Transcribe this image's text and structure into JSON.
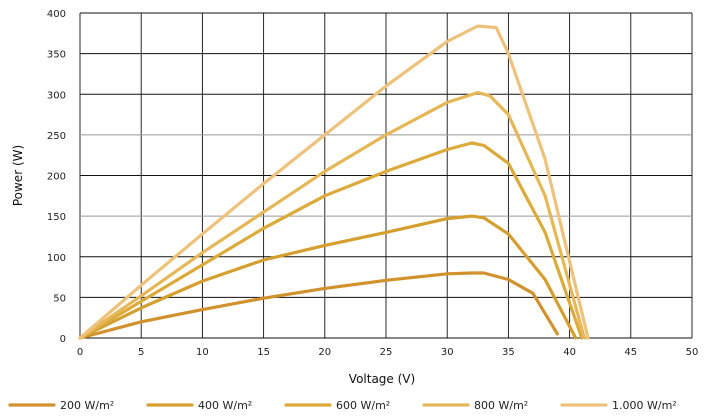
{
  "chart_data": {
    "type": "line",
    "title": "",
    "xlabel": "Voltage (V)",
    "ylabel": "Power (W)",
    "xlim": [
      0,
      50
    ],
    "ylim": [
      0,
      400
    ],
    "x_ticks": [
      0,
      5,
      10,
      15,
      20,
      25,
      30,
      35,
      40,
      45,
      50
    ],
    "y_ticks": [
      0,
      50,
      100,
      150,
      200,
      250,
      300,
      350,
      400
    ],
    "grid": true,
    "legend_position": "bottom",
    "series": [
      {
        "name": "200 W/m²",
        "color": "#d1922e",
        "points": [
          [
            0,
            0
          ],
          [
            5,
            20
          ],
          [
            10,
            35
          ],
          [
            15,
            49
          ],
          [
            20,
            61
          ],
          [
            25,
            71
          ],
          [
            30,
            79
          ],
          [
            32,
            80
          ],
          [
            33,
            80
          ],
          [
            35,
            72
          ],
          [
            37,
            55
          ],
          [
            39,
            5
          ]
        ]
      },
      {
        "name": "400 W/m²",
        "color": "#d59f2f",
        "points": [
          [
            0,
            0
          ],
          [
            5,
            37
          ],
          [
            10,
            70
          ],
          [
            15,
            96
          ],
          [
            20,
            114
          ],
          [
            25,
            130
          ],
          [
            30,
            147
          ],
          [
            32,
            150
          ],
          [
            33,
            148
          ],
          [
            35,
            128
          ],
          [
            38,
            72
          ],
          [
            40.5,
            0
          ]
        ]
      },
      {
        "name": "600 W/m²",
        "color": "#dcaa3a",
        "points": [
          [
            0,
            0
          ],
          [
            5,
            45
          ],
          [
            10,
            90
          ],
          [
            15,
            135
          ],
          [
            20,
            175
          ],
          [
            25,
            205
          ],
          [
            30,
            232
          ],
          [
            32,
            240
          ],
          [
            33,
            237
          ],
          [
            35,
            215
          ],
          [
            38,
            130
          ],
          [
            41,
            0
          ]
        ]
      },
      {
        "name": "800 W/m²",
        "color": "#e5b756",
        "points": [
          [
            0,
            0
          ],
          [
            5,
            52
          ],
          [
            10,
            105
          ],
          [
            15,
            155
          ],
          [
            20,
            205
          ],
          [
            25,
            250
          ],
          [
            30,
            290
          ],
          [
            32.5,
            302
          ],
          [
            33.5,
            298
          ],
          [
            35,
            275
          ],
          [
            38,
            175
          ],
          [
            41.2,
            0
          ]
        ]
      },
      {
        "name": "1.000 W/m²",
        "color": "#eec27b",
        "points": [
          [
            0,
            0
          ],
          [
            5,
            65
          ],
          [
            10,
            128
          ],
          [
            15,
            190
          ],
          [
            20,
            250
          ],
          [
            25,
            310
          ],
          [
            30,
            365
          ],
          [
            32.5,
            384
          ],
          [
            34,
            382
          ],
          [
            35,
            350
          ],
          [
            38,
            220
          ],
          [
            41.5,
            0
          ]
        ]
      }
    ]
  }
}
